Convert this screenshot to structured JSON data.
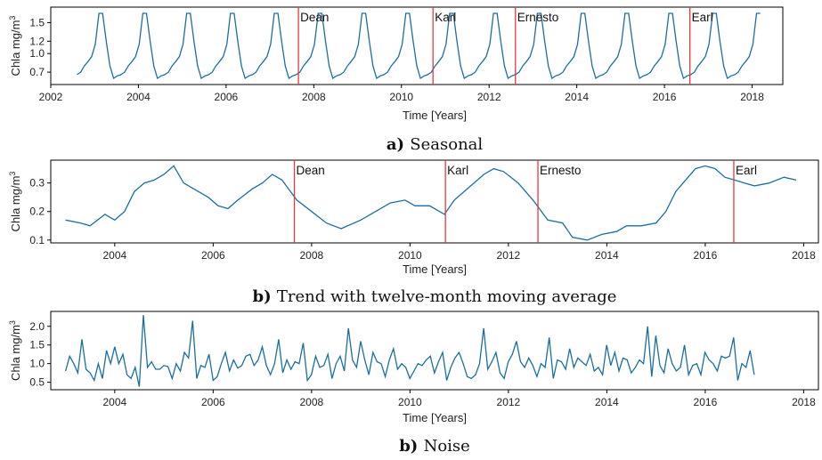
{
  "chart_data": [
    {
      "type": "line",
      "caption_letter": "a)",
      "caption_text": "Seasonal",
      "xlabel": "Time [Years]",
      "ylabel": "Chla mg/m3",
      "xlim": [
        2002.0,
        2018.7
      ],
      "ylim": [
        0.5,
        1.75
      ],
      "xticks": [
        2002,
        2004,
        2006,
        2008,
        2010,
        2012,
        2014,
        2016,
        2018
      ],
      "yticks": [
        0.7,
        1.0,
        1.2,
        1.5
      ],
      "line_color": "#1a6fa0",
      "event_color": "#e8383d",
      "events": [
        {
          "name": "Dean",
          "x": 2007.65
        },
        {
          "name": "Karl",
          "x": 2010.72
        },
        {
          "name": "Ernesto",
          "x": 2012.6
        },
        {
          "name": "Earl",
          "x": 2016.58
        }
      ],
      "seasonal_profile": [
        1.15,
        1.65,
        1.65,
        1.2,
        0.8,
        0.6,
        0.64,
        0.66,
        0.7,
        0.8,
        0.87,
        0.95
      ],
      "series_x_start": 2002.6,
      "series_x_end": 2018.25
    },
    {
      "type": "line",
      "caption_letter": "b)",
      "caption_text": "Trend with twelve-month moving average",
      "xlabel": "Time [Years]",
      "ylabel": "Chla mg/m3",
      "xlim": [
        2002.7,
        2018.3
      ],
      "ylim": [
        0.09,
        0.38
      ],
      "xticks": [
        2004,
        2006,
        2008,
        2010,
        2012,
        2014,
        2016,
        2018
      ],
      "yticks": [
        0.1,
        0.2,
        0.3
      ],
      "line_color": "#1a6fa0",
      "event_color": "#e8383d",
      "events": [
        {
          "name": "Dean",
          "x": 2007.65
        },
        {
          "name": "Karl",
          "x": 2010.72
        },
        {
          "name": "Ernesto",
          "x": 2012.6
        },
        {
          "name": "Earl",
          "x": 2016.58
        }
      ],
      "x": [
        2003.0,
        2003.3,
        2003.5,
        2003.8,
        2004.0,
        2004.2,
        2004.4,
        2004.6,
        2004.8,
        2005.0,
        2005.2,
        2005.4,
        2005.6,
        2005.9,
        2006.1,
        2006.3,
        2006.5,
        2006.8,
        2007.0,
        2007.2,
        2007.4,
        2007.7,
        2008.0,
        2008.3,
        2008.6,
        2009.0,
        2009.3,
        2009.6,
        2009.9,
        2010.1,
        2010.4,
        2010.7,
        2010.9,
        2011.1,
        2011.3,
        2011.5,
        2011.7,
        2011.9,
        2012.2,
        2012.5,
        2012.8,
        2013.1,
        2013.3,
        2013.6,
        2013.9,
        2014.2,
        2014.4,
        2014.7,
        2015.0,
        2015.2,
        2015.4,
        2015.6,
        2015.8,
        2016.0,
        2016.2,
        2016.4,
        2016.6,
        2016.8,
        2017.0,
        2017.3,
        2017.6,
        2017.85
      ],
      "values": [
        0.17,
        0.16,
        0.15,
        0.19,
        0.17,
        0.2,
        0.27,
        0.3,
        0.31,
        0.33,
        0.36,
        0.3,
        0.28,
        0.25,
        0.22,
        0.21,
        0.24,
        0.28,
        0.3,
        0.33,
        0.31,
        0.24,
        0.2,
        0.16,
        0.14,
        0.17,
        0.2,
        0.23,
        0.24,
        0.22,
        0.22,
        0.19,
        0.24,
        0.27,
        0.3,
        0.33,
        0.35,
        0.34,
        0.3,
        0.24,
        0.17,
        0.16,
        0.11,
        0.1,
        0.12,
        0.13,
        0.15,
        0.15,
        0.16,
        0.2,
        0.27,
        0.31,
        0.35,
        0.36,
        0.35,
        0.32,
        0.31,
        0.3,
        0.29,
        0.3,
        0.32,
        0.31
      ]
    },
    {
      "type": "line",
      "caption_letter": "b)",
      "caption_text": "Noise",
      "xlabel": "Time [Years]",
      "ylabel": "Chla mg/m3",
      "xlim": [
        2002.7,
        2018.3
      ],
      "ylim": [
        0.3,
        2.4
      ],
      "xticks": [
        2004,
        2006,
        2008,
        2010,
        2012,
        2014,
        2016,
        2018
      ],
      "yticks": [
        0.5,
        1.0,
        1.5,
        2.0
      ],
      "line_color": "#1a6fa0",
      "x_start": 2003.0,
      "x_step": 0.0833,
      "values": [
        0.8,
        1.2,
        1.0,
        0.75,
        1.65,
        0.85,
        0.75,
        0.55,
        1.0,
        0.6,
        1.35,
        1.0,
        1.45,
        1.0,
        1.25,
        0.7,
        0.6,
        0.9,
        0.38,
        2.3,
        0.9,
        1.05,
        0.85,
        0.85,
        0.95,
        0.92,
        0.6,
        1.0,
        0.8,
        1.3,
        1.15,
        2.15,
        0.6,
        0.95,
        0.9,
        1.25,
        0.55,
        0.65,
        1.0,
        1.3,
        0.8,
        1.1,
        0.88,
        0.95,
        1.2,
        1.25,
        0.95,
        1.1,
        1.45,
        0.95,
        0.7,
        1.0,
        1.65,
        0.75,
        1.1,
        0.85,
        1.05,
        1.0,
        1.55,
        0.55,
        0.7,
        1.2,
        0.9,
        0.95,
        1.25,
        0.6,
        1.0,
        1.2,
        0.8,
        1.95,
        1.1,
        0.9,
        1.6,
        1.1,
        0.7,
        1.3,
        1.05,
        1.0,
        0.65,
        1.1,
        1.4,
        0.85,
        1.0,
        0.9,
        0.6,
        0.8,
        1.0,
        0.95,
        1.1,
        1.2,
        0.75,
        1.05,
        1.3,
        0.55,
        0.9,
        1.15,
        1.3,
        1.0,
        0.65,
        0.6,
        0.7,
        1.0,
        1.95,
        0.85,
        1.05,
        1.3,
        0.75,
        0.6,
        1.05,
        1.25,
        1.6,
        1.05,
        0.9,
        1.15,
        0.95,
        0.65,
        1.0,
        0.9,
        1.7,
        0.6,
        1.1,
        1.05,
        0.85,
        1.4,
        0.9,
        1.15,
        1.05,
        0.95,
        1.25,
        0.8,
        0.9,
        0.7,
        1.5,
        0.95,
        1.3,
        0.8,
        1.15,
        1.1,
        0.75,
        0.9,
        1.1,
        1.0,
        2.0,
        0.65,
        1.75,
        0.95,
        0.75,
        1.4,
        1.0,
        0.8,
        0.9,
        1.5,
        0.7,
        0.95,
        1.0,
        0.7,
        1.3,
        1.1,
        1.0,
        0.8,
        1.2,
        1.15,
        1.2,
        1.7,
        0.55,
        1.0,
        0.9,
        1.35,
        0.7
      ]
    }
  ]
}
